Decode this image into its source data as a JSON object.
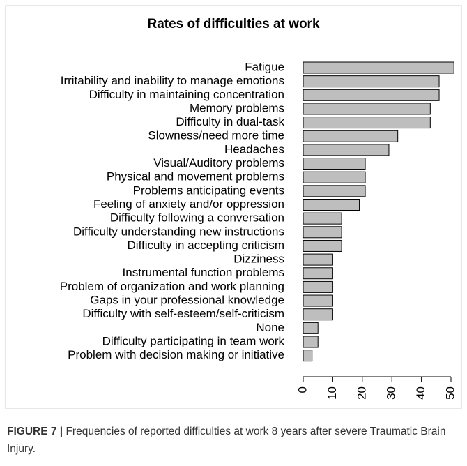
{
  "chart_data": {
    "type": "bar",
    "orientation": "horizontal",
    "title": "Rates of difficulties at work",
    "categories": [
      "Fatigue",
      "Irritability and inability to manage emotions",
      "Difficulty in maintaining concentration",
      "Memory problems",
      "Difficulty in dual-task",
      "Slowness/need more time",
      "Headaches",
      "Visual/Auditory problems",
      "Physical and movement problems",
      "Problems anticipating events",
      "Feeling of anxiety and/or oppression",
      "Difficulty following a conversation",
      "Difficulty understanding new instructions",
      "Difficulty in accepting criticism",
      "Dizziness",
      "Instrumental function problems",
      "Problem of organization and work planning",
      "Gaps in your professional knowledge",
      "Difficulty with self-esteem/self-criticism",
      "None",
      "Difficulty participating in team work",
      "Problem with decision making or initiative"
    ],
    "values": [
      51,
      46,
      46,
      43,
      43,
      32,
      29,
      21,
      21,
      21,
      19,
      13,
      13,
      13,
      10,
      10,
      10,
      10,
      10,
      5,
      5,
      3
    ],
    "color": "#bebebe",
    "xlim": [
      0,
      50
    ],
    "xticks": [
      0,
      10,
      20,
      30,
      40,
      50
    ]
  },
  "caption": {
    "label": "FIGURE 7 |",
    "text": "Frequencies of reported difficulties at work 8 years after severe Traumatic Brain Injury."
  }
}
